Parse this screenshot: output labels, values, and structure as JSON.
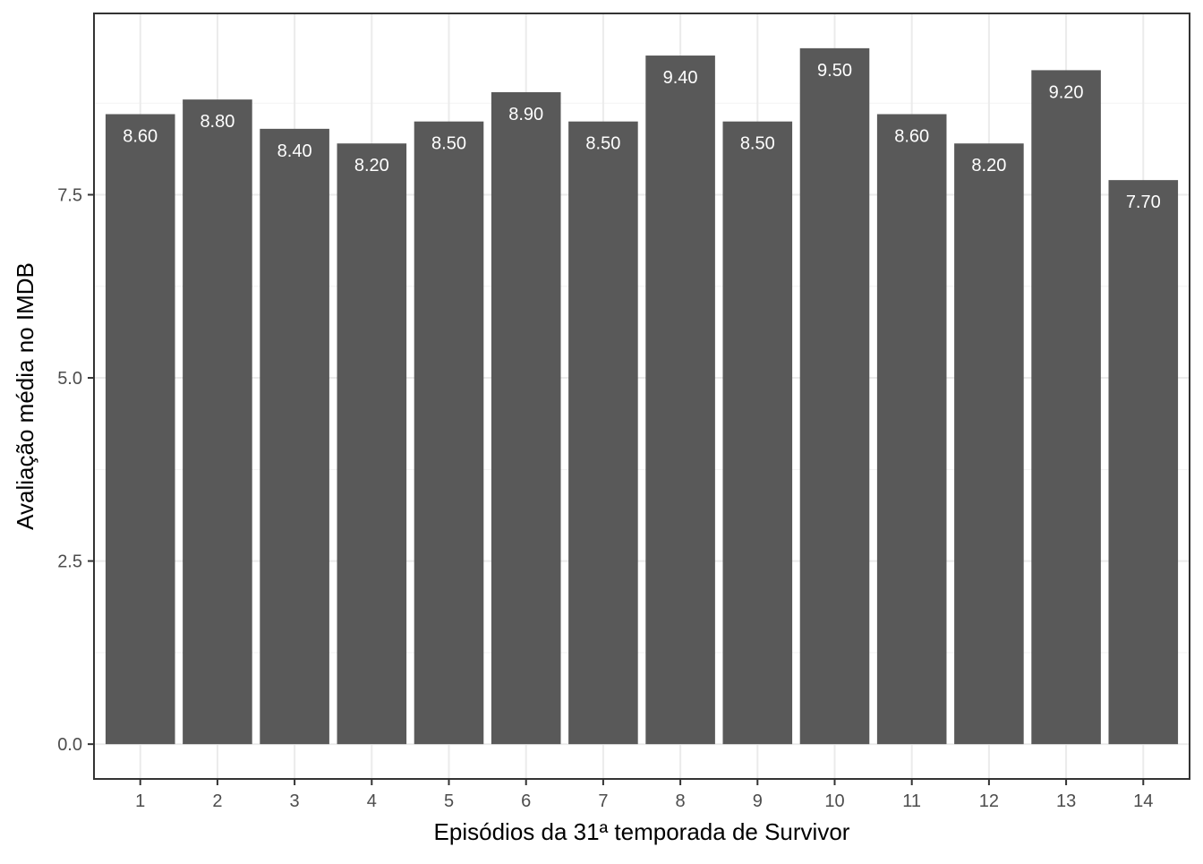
{
  "chart_data": {
    "type": "bar",
    "title": "",
    "xlabel": "Episódios da 31ª temporada de Survivor",
    "ylabel": "Avaliação média no IMDB",
    "categories": [
      "1",
      "2",
      "3",
      "4",
      "5",
      "6",
      "7",
      "8",
      "9",
      "10",
      "11",
      "12",
      "13",
      "14"
    ],
    "values": [
      8.6,
      8.8,
      8.4,
      8.2,
      8.5,
      8.9,
      8.5,
      9.4,
      8.5,
      9.5,
      8.6,
      8.2,
      9.2,
      7.7
    ],
    "value_labels": [
      "8.60",
      "8.80",
      "8.40",
      "8.20",
      "8.50",
      "8.90",
      "8.50",
      "9.40",
      "8.50",
      "9.50",
      "8.60",
      "8.20",
      "9.20",
      "7.70"
    ],
    "y_ticks": [
      0,
      2.5,
      5,
      7.5
    ],
    "y_tick_labels": [
      "0.0",
      "2.5",
      "5.0",
      "7.5"
    ],
    "ylim": [
      -0.475,
      9.975
    ],
    "grid": true,
    "legend": "none",
    "colors": {
      "bar": "#595959",
      "panel_border": "#333333",
      "grid": "#ebebeb"
    }
  }
}
